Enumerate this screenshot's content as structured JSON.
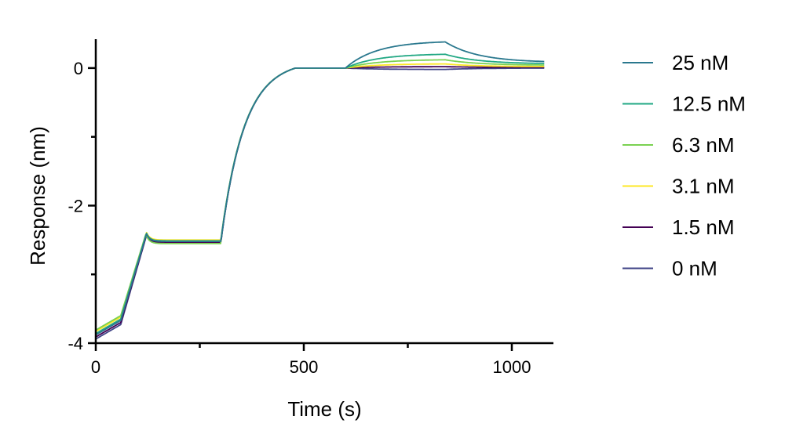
{
  "chart_data": {
    "type": "line",
    "title": "",
    "xlabel": "Time (s)",
    "ylabel": "Response (nm)",
    "xlim": [
      0,
      1100
    ],
    "ylim": [
      -4,
      0.42
    ],
    "x_major_ticks": [
      0,
      500,
      1000
    ],
    "x_major_tick_labels": [
      "0",
      "500",
      "1000"
    ],
    "x_minor_ticks": [
      250,
      750
    ],
    "y_major_ticks": [
      0,
      -2,
      -4
    ],
    "y_major_tick_labels": [
      "0",
      "-2",
      "-4"
    ],
    "y_minor_ticks": [
      -1,
      -3
    ],
    "grid": false,
    "legend_position": "right",
    "series": [
      {
        "name": "25 nM",
        "color": "#2a788e",
        "association_peak": 0.38,
        "baseline_offset": 0.0,
        "end_value": 0.08
      },
      {
        "name": "12.5 nM",
        "color": "#22a884",
        "association_peak": 0.2,
        "baseline_offset": 0.02,
        "end_value": 0.06
      },
      {
        "name": "6.3 nM",
        "color": "#7ad151",
        "association_peak": 0.12,
        "baseline_offset": 0.07,
        "end_value": 0.04
      },
      {
        "name": "3.1 nM",
        "color": "#fde725",
        "association_peak": 0.06,
        "baseline_offset": 0.05,
        "end_value": 0.02
      },
      {
        "name": "1.5 nM",
        "color": "#440154",
        "association_peak": 0.02,
        "baseline_offset": -0.03,
        "end_value": 0.01
      },
      {
        "name": "0 nM",
        "color": "#414487",
        "association_peak": -0.02,
        "baseline_offset": -0.06,
        "end_value": 0.0
      }
    ]
  }
}
